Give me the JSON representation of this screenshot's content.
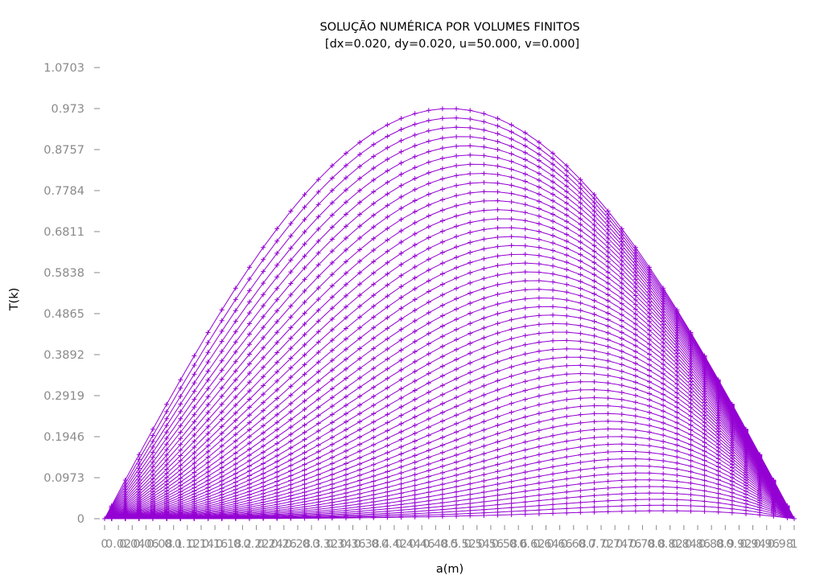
{
  "chart_data": {
    "type": "line",
    "title": "SOLUÇÃO NUMÉRICA POR VOLUMES FINITOS",
    "subtitle": "[dx=0.020, dy=0.020, u=50.000, v=0.000]",
    "xlabel": "a(m)",
    "ylabel": "T(k)",
    "xlim": [
      0,
      1
    ],
    "ylim": [
      0,
      1.0703
    ],
    "yticks": [
      "0",
      "0.0973",
      "0.1946",
      "0.2919",
      "0.3892",
      "0.4865",
      "0.5838",
      "0.6811",
      "0.7784",
      "0.8757",
      "0.973",
      "1.0703"
    ],
    "xticks": [
      "0",
      "0.02",
      "0.04",
      "0.06",
      "0.08",
      "0.1",
      "0.12",
      "0.14",
      "0.16",
      "0.18",
      "0.2",
      "0.22",
      "0.24",
      "0.26",
      "0.28",
      "0.3",
      "0.32",
      "0.34",
      "0.36",
      "0.38",
      "0.4",
      "0.42",
      "0.44",
      "0.46",
      "0.48",
      "0.5",
      "0.52",
      "0.54",
      "0.56",
      "0.58",
      "0.6",
      "0.62",
      "0.64",
      "0.66",
      "0.68",
      "0.7",
      "0.72",
      "0.74",
      "0.76",
      "0.78",
      "0.8",
      "0.82",
      "0.84",
      "0.86",
      "0.88",
      "0.9",
      "0.92",
      "0.94",
      "0.96",
      "0.98",
      "1"
    ],
    "grid": false,
    "legend": "none",
    "series_color": "#9400d3",
    "marker": "plus",
    "x": [
      0,
      0.01,
      0.03,
      0.05,
      0.07,
      0.09,
      0.11,
      0.13,
      0.15,
      0.17,
      0.19,
      0.21,
      0.23,
      0.25,
      0.27,
      0.29,
      0.31,
      0.33,
      0.35,
      0.37,
      0.39,
      0.41,
      0.43,
      0.45,
      0.47,
      0.49,
      0.51,
      0.53,
      0.55,
      0.57,
      0.59,
      0.61,
      0.63,
      0.65,
      0.67,
      0.69,
      0.71,
      0.73,
      0.75,
      0.77,
      0.79,
      0.81,
      0.83,
      0.85,
      0.87,
      0.89,
      0.91,
      0.93,
      0.95,
      0.97,
      0.99,
      1
    ],
    "series_model": {
      "count": 50,
      "top_peak": 0.973,
      "top_peak_x": 0.5,
      "bottom_peak_x": 0.82,
      "min_amplitude": 0.008
    }
  }
}
